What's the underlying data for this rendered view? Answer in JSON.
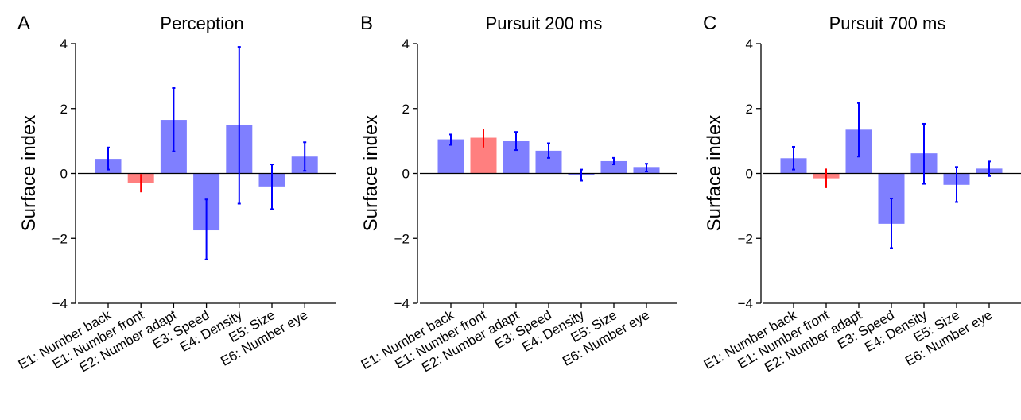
{
  "colors": {
    "bar_blue": "#7f7fff",
    "bar_red": "#ff7f7f",
    "err_blue": "#0000ff",
    "err_red": "#ff0000",
    "axis": "#000000"
  },
  "chart_data": [
    {
      "type": "bar",
      "panel_label": "A",
      "title": "Perception",
      "ylabel": "Surface index",
      "xlabel": "",
      "ylim": [
        -4,
        4
      ],
      "yticks": [
        -4,
        -2,
        0,
        2,
        4
      ],
      "ytick_labels": [
        "−4",
        "−2",
        "0",
        "2",
        "4"
      ],
      "categories": [
        "E1: Number back",
        "E1: Number front",
        "E2: Number adapt",
        "E3: Speed",
        "E4: Density",
        "E5: Size",
        "E6: Number eye"
      ],
      "values": [
        0.45,
        -0.3,
        1.65,
        -1.75,
        1.5,
        -0.4,
        0.52
      ],
      "error_low": [
        0.12,
        -0.58,
        0.68,
        -2.65,
        -0.93,
        -1.1,
        0.08
      ],
      "error_high": [
        0.8,
        -0.02,
        2.63,
        -0.8,
        3.9,
        0.28,
        0.96
      ],
      "bar_colors": [
        "blue",
        "red",
        "blue",
        "blue",
        "blue",
        "blue",
        "blue"
      ],
      "grid": false
    },
    {
      "type": "bar",
      "panel_label": "B",
      "title": "Pursuit 200 ms",
      "ylabel": "Surface index",
      "xlabel": "",
      "ylim": [
        -4,
        4
      ],
      "yticks": [
        -4,
        -2,
        0,
        2,
        4
      ],
      "ytick_labels": [
        "−4",
        "−2",
        "0",
        "2",
        "4"
      ],
      "categories": [
        "E1: Number back",
        "E1: Number front",
        "E2: Number adapt",
        "E3: Speed",
        "E4: Density",
        "E5: Size",
        "E6: Number eye"
      ],
      "values": [
        1.05,
        1.1,
        1.0,
        0.7,
        -0.05,
        0.38,
        0.2
      ],
      "error_low": [
        0.88,
        0.8,
        0.72,
        0.48,
        -0.22,
        0.28,
        0.06
      ],
      "error_high": [
        1.2,
        1.38,
        1.28,
        0.93,
        0.12,
        0.48,
        0.3
      ],
      "bar_colors": [
        "blue",
        "red",
        "blue",
        "blue",
        "blue",
        "blue",
        "blue"
      ],
      "grid": false
    },
    {
      "type": "bar",
      "panel_label": "C",
      "title": "Pursuit 700 ms",
      "ylabel": "Surface index",
      "xlabel": "",
      "ylim": [
        -4,
        4
      ],
      "yticks": [
        -4,
        -2,
        0,
        2,
        4
      ],
      "ytick_labels": [
        "−4",
        "−2",
        "0",
        "2",
        "4"
      ],
      "categories": [
        "E1: Number back",
        "E1: Number front",
        "E2: Number adapt",
        "E3: Speed",
        "E4: Density",
        "E5: Size",
        "E6: Number eye"
      ],
      "values": [
        0.47,
        -0.15,
        1.35,
        -1.55,
        0.62,
        -0.35,
        0.15
      ],
      "error_low": [
        0.12,
        -0.45,
        0.52,
        -2.3,
        -0.32,
        -0.88,
        -0.08
      ],
      "error_high": [
        0.82,
        0.15,
        2.17,
        -0.77,
        1.53,
        0.2,
        0.37
      ],
      "bar_colors": [
        "blue",
        "red",
        "blue",
        "blue",
        "blue",
        "blue",
        "blue"
      ],
      "grid": false
    }
  ]
}
